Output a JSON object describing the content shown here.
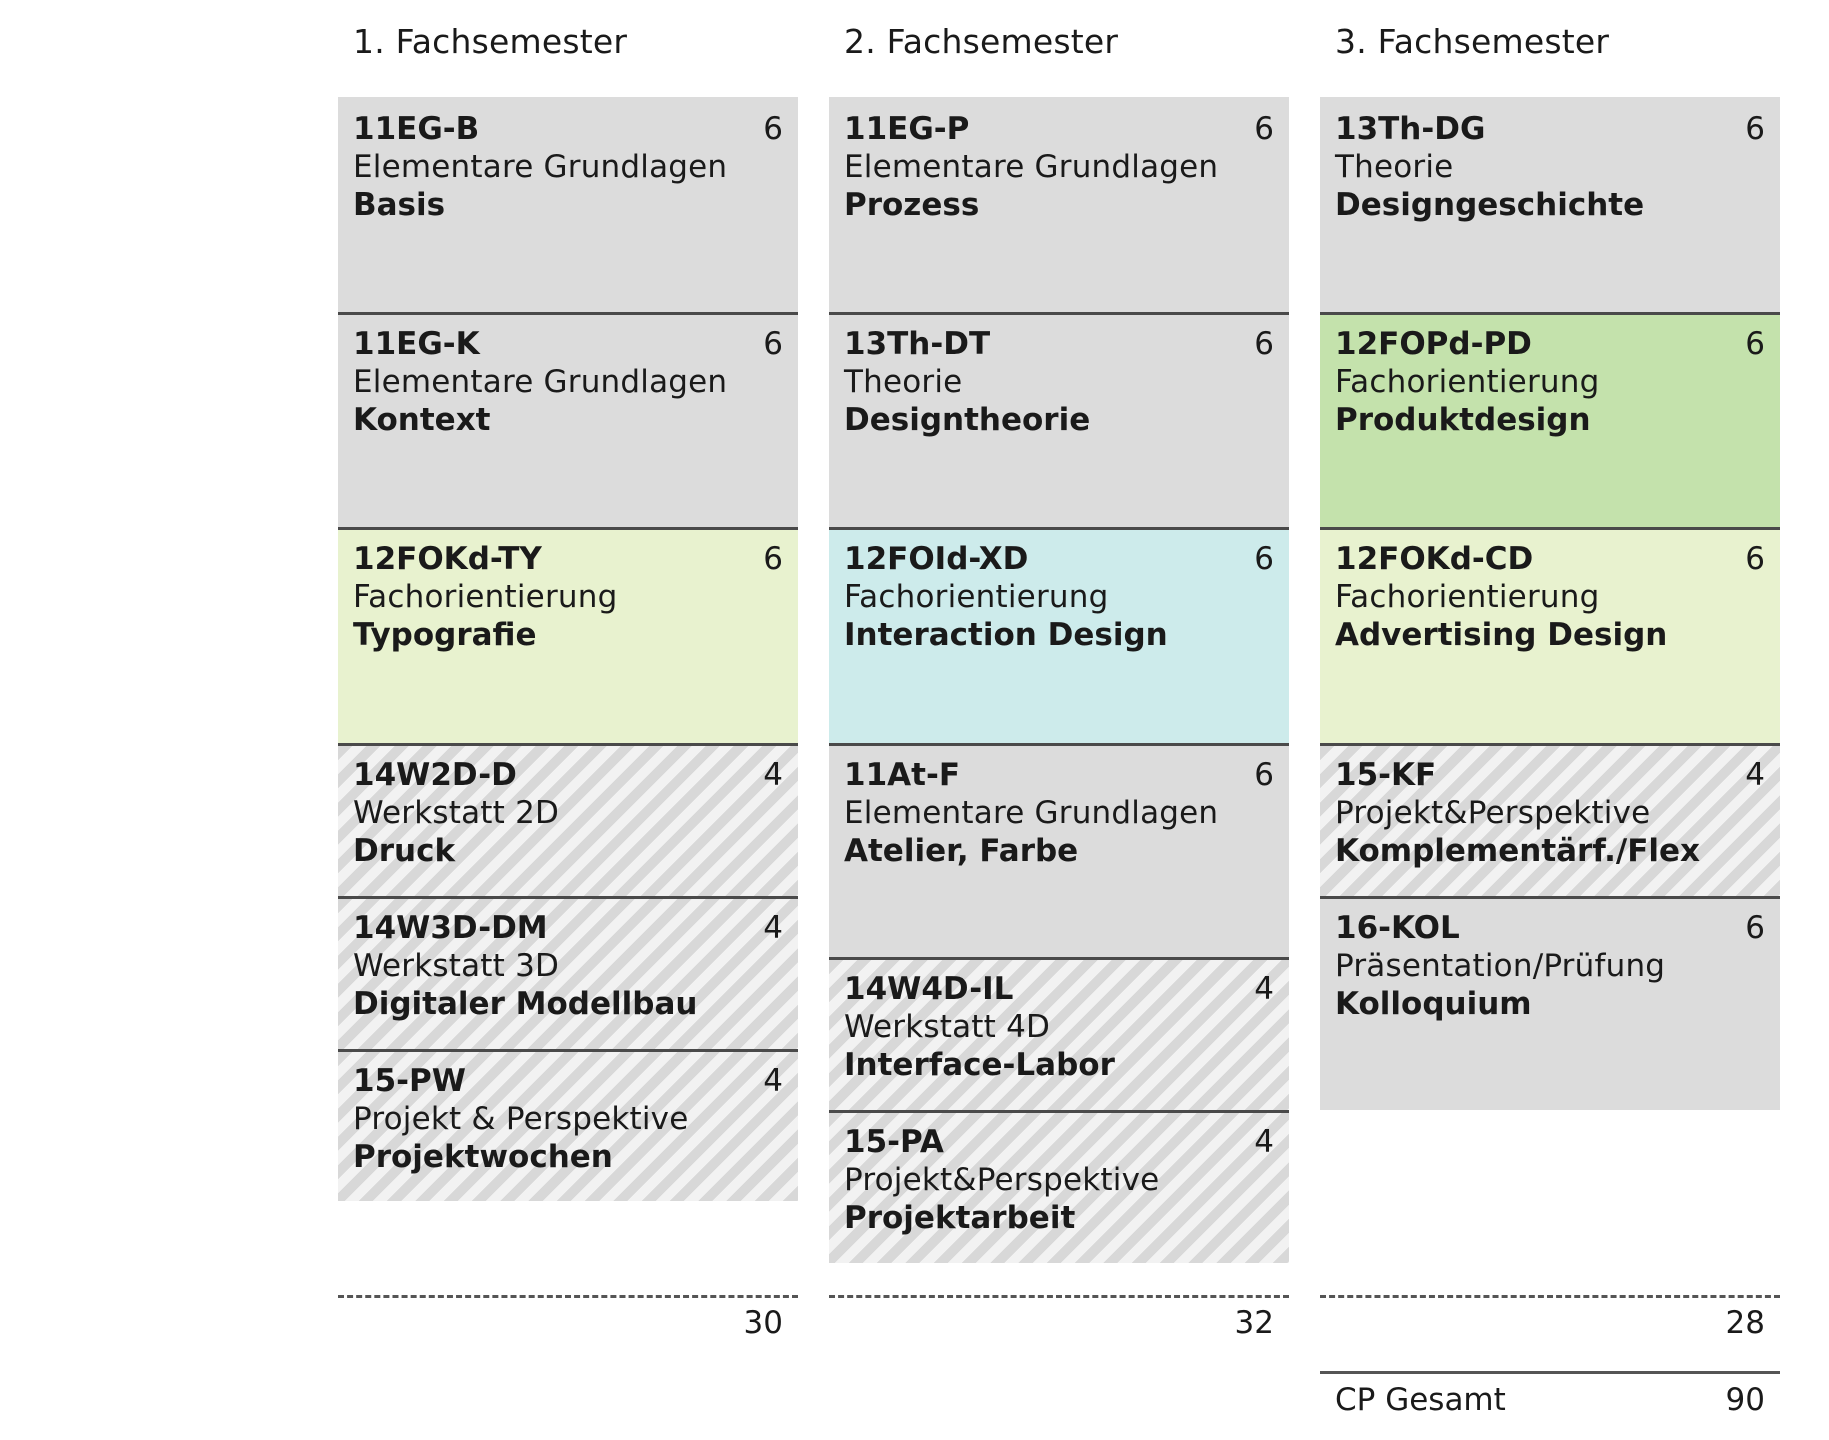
{
  "semesters": [
    {
      "title": "1. Fachsemester",
      "modules": [
        {
          "code": "11EG-B",
          "cp": "6",
          "subtitle": "Elementare Grundlagen",
          "name": "Basis",
          "style": "grey"
        },
        {
          "code": "11EG-K",
          "cp": "6",
          "subtitle": "Elementare Grundlagen",
          "name": "Kontext",
          "style": "grey"
        },
        {
          "code": "12FOKd-TY",
          "cp": "6",
          "subtitle": "Fachorientierung",
          "name": "Typografie",
          "style": "green-light"
        },
        {
          "code": "14W2D-D",
          "cp": "4",
          "subtitle": "Werkstatt 2D",
          "name": "Druck",
          "style": "hatch"
        },
        {
          "code": "14W3D-DM",
          "cp": "4",
          "subtitle": "Werkstatt 3D",
          "name": "Digitaler Modellbau",
          "style": "hatch"
        },
        {
          "code": "15-PW",
          "cp": "4",
          "subtitle": "Projekt & Perspektive",
          "name": "Projektwochen",
          "style": "hatch"
        }
      ],
      "sum": "30"
    },
    {
      "title": "2. Fachsemester",
      "modules": [
        {
          "code": "11EG-P",
          "cp": "6",
          "subtitle": "Elementare Grundlagen",
          "name": "Prozess",
          "style": "grey"
        },
        {
          "code": "13Th-DT",
          "cp": "6",
          "subtitle": "Theorie",
          "name": "Designtheorie",
          "style": "grey"
        },
        {
          "code": "12FOId-XD",
          "cp": "6",
          "subtitle": "Fachorientierung",
          "name": "Interaction Design",
          "style": "cyan"
        },
        {
          "code": "11At-F",
          "cp": "6",
          "subtitle": "Elementare Grundlagen",
          "name": "Atelier, Farbe",
          "style": "grey"
        },
        {
          "code": "14W4D-IL",
          "cp": "4",
          "subtitle": "Werkstatt 4D",
          "name": "Interface-Labor",
          "style": "hatch"
        },
        {
          "code": "15-PA",
          "cp": "4",
          "subtitle": "Projekt&Perspektive",
          "name": "Projektarbeit",
          "style": "hatch"
        }
      ],
      "sum": "32"
    },
    {
      "title": "3. Fachsemester",
      "modules": [
        {
          "code": "13Th-DG",
          "cp": "6",
          "subtitle": "Theorie",
          "name": "Designgeschichte",
          "style": "grey"
        },
        {
          "code": "12FOPd-PD",
          "cp": "6",
          "subtitle": "Fachorientierung",
          "name": "Produktdesign",
          "style": "green"
        },
        {
          "code": "12FOKd-CD",
          "cp": "6",
          "subtitle": "Fachorientierung",
          "name": "Advertising Design",
          "style": "green-light"
        },
        {
          "code": "15-KF",
          "cp": "4",
          "subtitle": "Projekt&Perspektive",
          "name": "Komplementärf./Flex",
          "style": "hatch"
        },
        {
          "code": "16-KOL",
          "cp": "6",
          "subtitle": "Präsentation/Prüfung",
          "name": "Kolloquium",
          "style": "grey"
        }
      ],
      "sum": "28"
    }
  ],
  "total": {
    "label": "CP Gesamt",
    "value": "90"
  }
}
